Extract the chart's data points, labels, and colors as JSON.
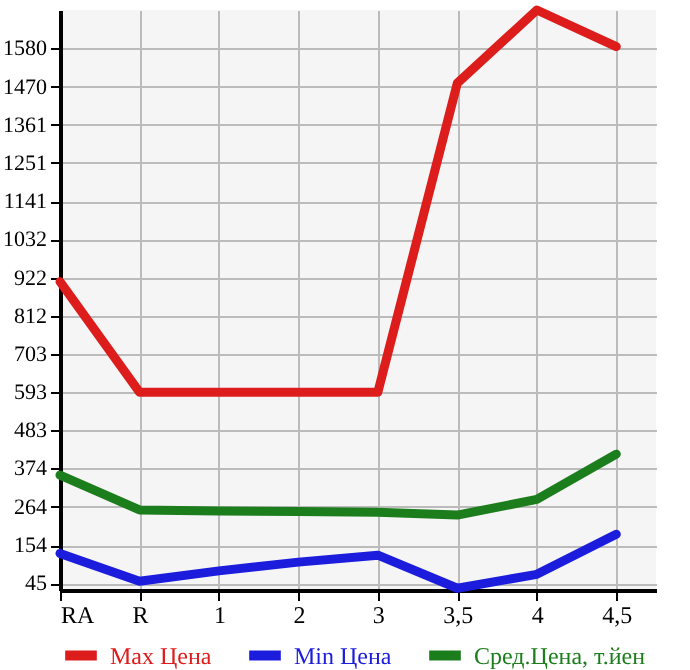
{
  "chart_data": {
    "type": "line",
    "categories": [
      "RA",
      "R",
      "1",
      "2",
      "3",
      "3,5",
      "4",
      "4,5"
    ],
    "series": [
      {
        "name": "Max Цена",
        "color": "#dd1c1c",
        "values": [
          910,
          593,
          593,
          593,
          593,
          1480,
          1690,
          1585
        ]
      },
      {
        "name": "Min Цена",
        "color": "#1c1cdd",
        "values": [
          130,
          50,
          80,
          105,
          125,
          30,
          70,
          185
        ]
      },
      {
        "name": "Сред.Цена, т.йен",
        "color": "#1c7d1c",
        "values": [
          355,
          255,
          252,
          250,
          248,
          240,
          285,
          415
        ]
      }
    ],
    "ylim": [
      25,
      1690
    ],
    "yticks": [
      45,
      154,
      264,
      374,
      483,
      593,
      703,
      812,
      922,
      1032,
      1141,
      1251,
      1361,
      1470,
      1580
    ],
    "grid": true,
    "legend": "bottom",
    "marker": "none",
    "line_style": "solid"
  }
}
